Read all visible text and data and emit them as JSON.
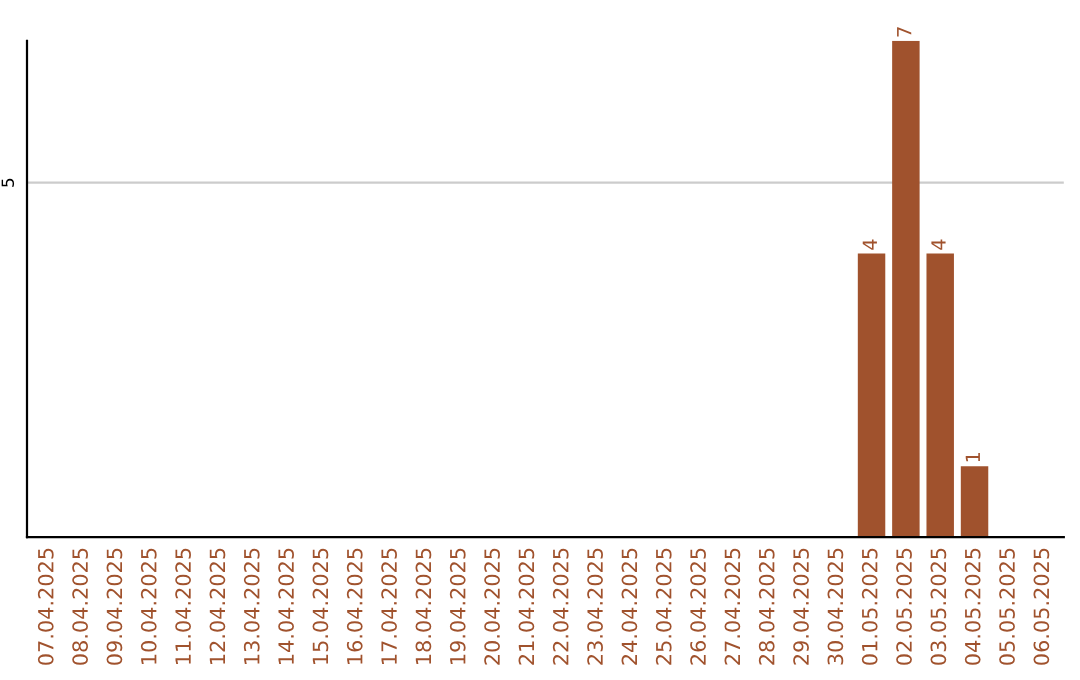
{
  "chart_data": {
    "type": "bar",
    "categories": [
      "07.04.2025",
      "08.04.2025",
      "09.04.2025",
      "10.04.2025",
      "11.04.2025",
      "12.04.2025",
      "13.04.2025",
      "14.04.2025",
      "15.04.2025",
      "16.04.2025",
      "17.04.2025",
      "18.04.2025",
      "19.04.2025",
      "20.04.2025",
      "21.04.2025",
      "22.04.2025",
      "23.04.2025",
      "24.04.2025",
      "25.04.2025",
      "26.04.2025",
      "27.04.2025",
      "28.04.2025",
      "29.04.2025",
      "30.04.2025",
      "01.05.2025",
      "02.05.2025",
      "03.05.2025",
      "04.05.2025",
      "05.05.2025",
      "06.05.2025"
    ],
    "values": [
      null,
      null,
      null,
      null,
      null,
      null,
      null,
      null,
      null,
      null,
      null,
      null,
      null,
      null,
      null,
      null,
      null,
      null,
      null,
      null,
      null,
      null,
      null,
      null,
      4,
      7,
      4,
      1,
      null,
      null
    ],
    "value_labels": [
      null,
      null,
      null,
      null,
      null,
      null,
      null,
      null,
      null,
      null,
      null,
      null,
      null,
      null,
      null,
      null,
      null,
      null,
      null,
      null,
      null,
      null,
      null,
      null,
      "4",
      "7",
      "4",
      "1",
      null,
      null
    ],
    "color": "#a0522d",
    "ylim": [
      0,
      7
    ],
    "yticks": [
      5
    ],
    "grid": "y",
    "legend": false
  }
}
